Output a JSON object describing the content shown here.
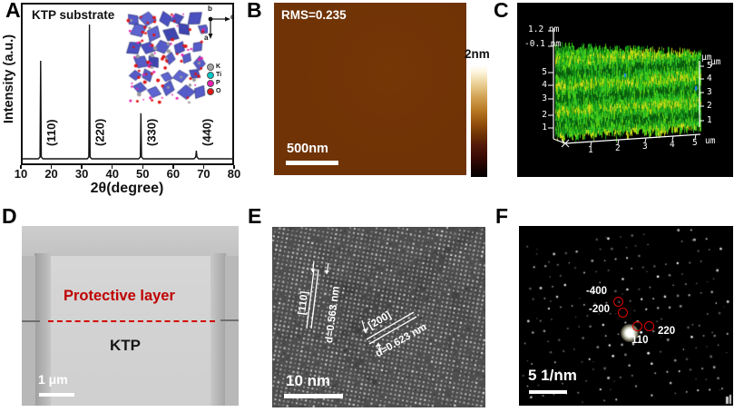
{
  "panel_a": {
    "label": "A",
    "title": "KTP substrate",
    "xlabel": "2θ(degree)",
    "ylabel": "Intensity (a.u.)",
    "xticks": [
      "10",
      "20",
      "30",
      "40",
      "50",
      "60",
      "70",
      "80"
    ],
    "legend": [
      {
        "name": "K",
        "color": "#a8a8a8"
      },
      {
        "name": "Ti",
        "color": "#00c8c8"
      },
      {
        "name": "P",
        "color": "#e820b0"
      },
      {
        "name": "O",
        "color": "#e01414"
      }
    ],
    "axes_marker": {
      "up": "b",
      "right": "c",
      "down": "a"
    }
  },
  "chart_data": {
    "type": "line",
    "title": "KTP substrate",
    "xlabel": "2θ(degree)",
    "ylabel": "Intensity (a.u.)",
    "xlim": [
      10,
      80
    ],
    "ylim": [
      0,
      1.05
    ],
    "grid": false,
    "peaks": [
      {
        "two_theta": 16.0,
        "rel_intensity": 0.73,
        "label": "(110)"
      },
      {
        "two_theta": 32.3,
        "rel_intensity": 1.0,
        "label": "(220)"
      },
      {
        "two_theta": 49.5,
        "rel_intensity": 0.34,
        "label": "(330)"
      },
      {
        "two_theta": 68.0,
        "rel_intensity": 0.06,
        "label": "(440)"
      }
    ]
  },
  "panel_b": {
    "label": "B",
    "rms": "RMS=0.235",
    "scalebar": "500nm",
    "colorbar_label": "2nm",
    "surface_color": "#6f3305"
  },
  "panel_c": {
    "label": "C",
    "z_max": "1.2 nm",
    "z_min": "-0.1 nm",
    "left_ticks": [
      "5",
      "4",
      "3",
      "2",
      "1"
    ],
    "right_ticks": [
      "5",
      "4",
      "3",
      "2",
      "1"
    ],
    "bottom_ticks": [
      "1",
      "2",
      "3",
      "4",
      "5"
    ],
    "right_unit_a": "µm",
    "right_unit_b": "µm",
    "bottom_unit": "um",
    "surface_colors": [
      "#118a11",
      "#22aa22",
      "#33cc22",
      "#55d214",
      "#86d40c",
      "#b8d80e",
      "#d8de20",
      "#0a5e0e"
    ]
  },
  "panel_d": {
    "label": "D",
    "layer_label": "Protective layer",
    "substrate_label": "KTP",
    "scalebar": "1 μm",
    "layer_color": "#c00000"
  },
  "panel_e": {
    "label": "E",
    "plane1": "[110]",
    "d1": "d=0.563 nm",
    "plane2": "[200]",
    "d2": "d=0.623 nm",
    "scalebar": "10 nm"
  },
  "panel_f": {
    "label": "F",
    "spots": [
      {
        "label": "-400"
      },
      {
        "label": "-200"
      },
      {
        "label": "110"
      },
      {
        "label": "220"
      }
    ],
    "scalebar": "5 1/nm",
    "ring_color": "#e00000"
  }
}
